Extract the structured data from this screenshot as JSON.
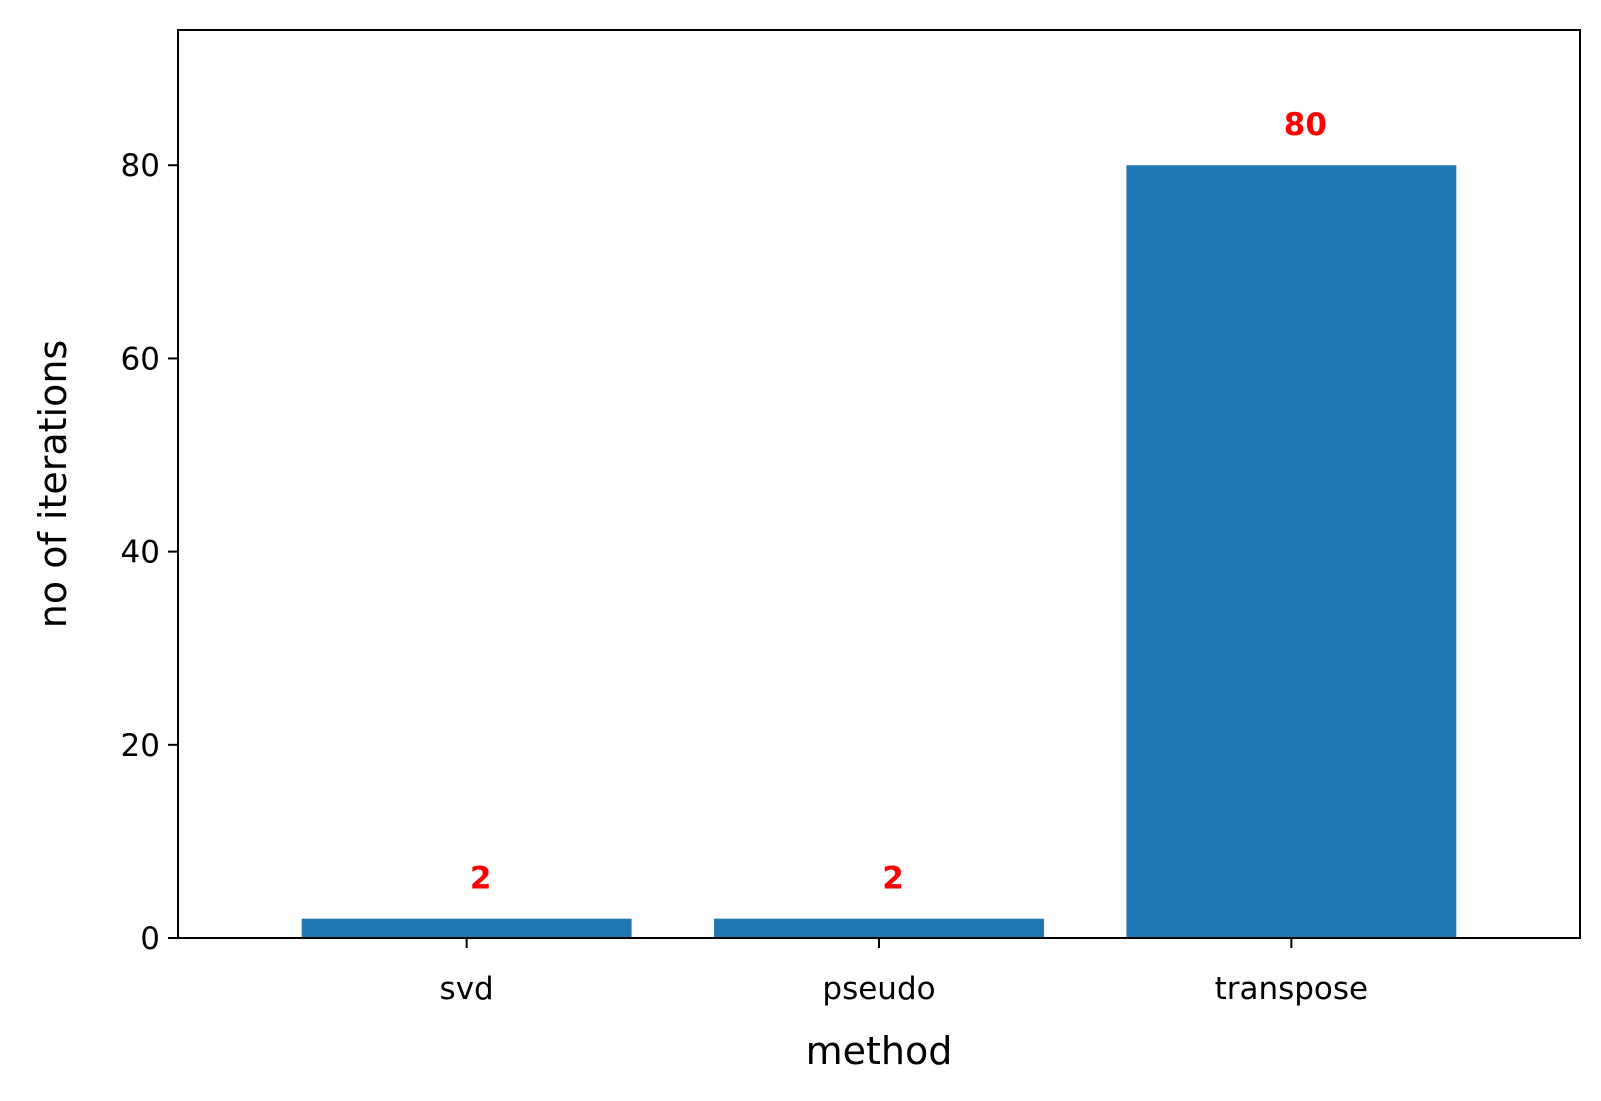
{
  "chart_data": {
    "type": "bar",
    "categories": [
      "svd",
      "pseudo",
      "transpose"
    ],
    "values": [
      2,
      2,
      80
    ],
    "data_labels": [
      "2",
      "2",
      "80"
    ],
    "title": "",
    "xlabel": "method",
    "ylabel": "no of iterations",
    "ylim": [
      0,
      94
    ],
    "yticks": [
      0,
      20,
      40,
      60,
      80
    ],
    "ytick_labels": [
      "0",
      "20",
      "40",
      "60",
      "80"
    ],
    "grid": false,
    "bar_color": "#1f77b4",
    "label_color": "#ff0000"
  }
}
